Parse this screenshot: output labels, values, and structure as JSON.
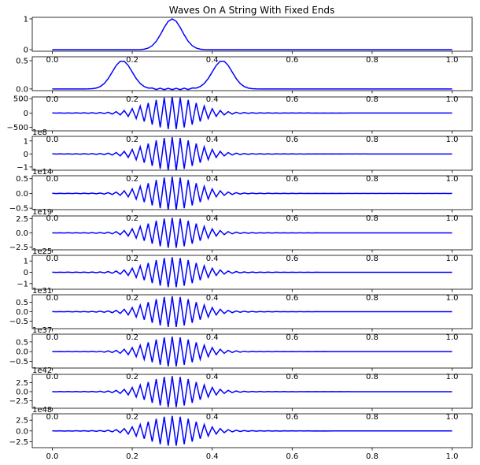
{
  "figure_title": "Waves On A String With Fixed Ends",
  "chart_data": [
    {
      "type": "line",
      "title": "Waves On A String With Fixed Ends",
      "multiplier": "",
      "ylim": [
        -0.05,
        1.05
      ],
      "yticks": [
        "0",
        "1"
      ],
      "ytick_values": [
        0,
        1
      ],
      "xlim": [
        -0.05,
        1.05
      ],
      "xticks": [
        "0.0",
        "0.2",
        "0.4",
        "0.6",
        "0.8",
        "1.0"
      ],
      "xticklabels_visible": false,
      "grid": false,
      "color": "#0000ff",
      "shape": "gaussian",
      "center": 0.3,
      "amplitude": 1.0
    },
    {
      "type": "line",
      "multiplier": "",
      "ylim": [
        -0.03,
        0.57
      ],
      "yticks": [
        "0.0",
        "0.5"
      ],
      "ytick_values": [
        0,
        0.5
      ],
      "xlim": [
        -0.05,
        1.05
      ],
      "xticks": [
        "0.0",
        "0.2",
        "0.4",
        "0.6",
        "0.8",
        "1.0"
      ],
      "xticklabels_visible": false,
      "grid": false,
      "color": "#0000ff",
      "shape": "split",
      "centers": [
        0.175,
        0.425
      ],
      "amplitude": 0.5
    },
    {
      "type": "line",
      "multiplier": "",
      "ylim": [
        -620,
        560
      ],
      "yticks": [
        "500",
        "0",
        "−500"
      ],
      "ytick_values": [
        500,
        0,
        -500
      ],
      "xlim": [
        -0.05,
        1.05
      ],
      "xticks": [
        "0.0",
        "0.2",
        "0.4",
        "0.6",
        "0.8",
        "1.0"
      ],
      "xticklabels_visible": false,
      "grid": false,
      "color": "#0000ff",
      "shape": "oscillation",
      "amplitude": 550
    },
    {
      "type": "line",
      "multiplier": "1e8",
      "ylim": [
        -1.25,
        1.35
      ],
      "yticks": [
        "1",
        "0",
        "−1"
      ],
      "ytick_values": [
        1,
        0,
        -1
      ],
      "xlim": [
        -0.05,
        1.05
      ],
      "xticks": [
        "0.0",
        "0.2",
        "0.4",
        "0.6",
        "0.8",
        "1.0"
      ],
      "xticklabels_visible": false,
      "grid": false,
      "color": "#0000ff",
      "shape": "oscillation",
      "amplitude": 1.25
    },
    {
      "type": "line",
      "multiplier": "1e14",
      "ylim": [
        -0.55,
        0.6
      ],
      "yticks": [
        "0.5",
        "0.0",
        "−0.5"
      ],
      "ytick_values": [
        0.5,
        0,
        -0.5
      ],
      "xlim": [
        -0.05,
        1.05
      ],
      "xticks": [
        "0.0",
        "0.2",
        "0.4",
        "0.6",
        "0.8",
        "1.0"
      ],
      "xticklabels_visible": false,
      "grid": false,
      "color": "#0000ff",
      "shape": "oscillation",
      "amplitude": 0.55
    },
    {
      "type": "line",
      "multiplier": "1e19",
      "ylim": [
        -3.0,
        3.0
      ],
      "yticks": [
        "2.5",
        "0.0",
        "−2.5"
      ],
      "ytick_values": [
        2.5,
        0,
        -2.5
      ],
      "xlim": [
        -0.05,
        1.05
      ],
      "xticks": [
        "0.0",
        "0.2",
        "0.4",
        "0.6",
        "0.8",
        "1.0"
      ],
      "xticklabels_visible": false,
      "grid": false,
      "color": "#0000ff",
      "shape": "oscillation",
      "amplitude": 2.6
    },
    {
      "type": "line",
      "multiplier": "1e25",
      "ylim": [
        -1.5,
        1.5
      ],
      "yticks": [
        "1",
        "0",
        "−1"
      ],
      "ytick_values": [
        1,
        0,
        -1
      ],
      "xlim": [
        -0.05,
        1.05
      ],
      "xticks": [
        "0.0",
        "0.2",
        "0.4",
        "0.6",
        "0.8",
        "1.0"
      ],
      "xticklabels_visible": false,
      "grid": false,
      "color": "#0000ff",
      "shape": "oscillation",
      "amplitude": 1.3
    },
    {
      "type": "line",
      "multiplier": "1e31",
      "ylim": [
        -0.9,
        0.9
      ],
      "yticks": [
        "0.5",
        "0.0",
        "−0.5"
      ],
      "ytick_values": [
        0.5,
        0,
        -0.5
      ],
      "xlim": [
        -0.05,
        1.05
      ],
      "xticks": [
        "0.0",
        "0.2",
        "0.4",
        "0.6",
        "0.8",
        "1.0"
      ],
      "xticklabels_visible": false,
      "grid": false,
      "color": "#0000ff",
      "shape": "oscillation",
      "amplitude": 0.8
    },
    {
      "type": "line",
      "multiplier": "1e37",
      "ylim": [
        -0.85,
        0.9
      ],
      "yticks": [
        "0.5",
        "0.0",
        "−0.5"
      ],
      "ytick_values": [
        0.5,
        0,
        -0.5
      ],
      "xlim": [
        -0.05,
        1.05
      ],
      "xticks": [
        "0.0",
        "0.2",
        "0.4",
        "0.6",
        "0.8",
        "1.0"
      ],
      "xticklabels_visible": false,
      "grid": false,
      "color": "#0000ff",
      "shape": "oscillation",
      "amplitude": 0.75
    },
    {
      "type": "line",
      "multiplier": "1e42",
      "ylim": [
        -4.6,
        4.8
      ],
      "yticks": [
        "2.5",
        "0.0",
        "−2.5"
      ],
      "ytick_values": [
        2.5,
        0,
        -2.5
      ],
      "xlim": [
        -0.05,
        1.05
      ],
      "xticks": [
        "0.0",
        "0.2",
        "0.4",
        "0.6",
        "0.8",
        "1.0"
      ],
      "xticklabels_visible": false,
      "grid": false,
      "color": "#0000ff",
      "shape": "oscillation",
      "amplitude": 4.2
    },
    {
      "type": "line",
      "multiplier": "1e48",
      "ylim": [
        -3.9,
        4.0
      ],
      "yticks": [
        "2.5",
        "0.0",
        "−2.5"
      ],
      "ytick_values": [
        2.5,
        0,
        -2.5
      ],
      "xlim": [
        -0.05,
        1.05
      ],
      "xticks": [
        "0.0",
        "0.2",
        "0.4",
        "0.6",
        "0.8",
        "1.0"
      ],
      "xticklabels_visible": true,
      "grid": false,
      "color": "#0000ff",
      "shape": "oscillation",
      "amplitude": 3.4
    }
  ]
}
